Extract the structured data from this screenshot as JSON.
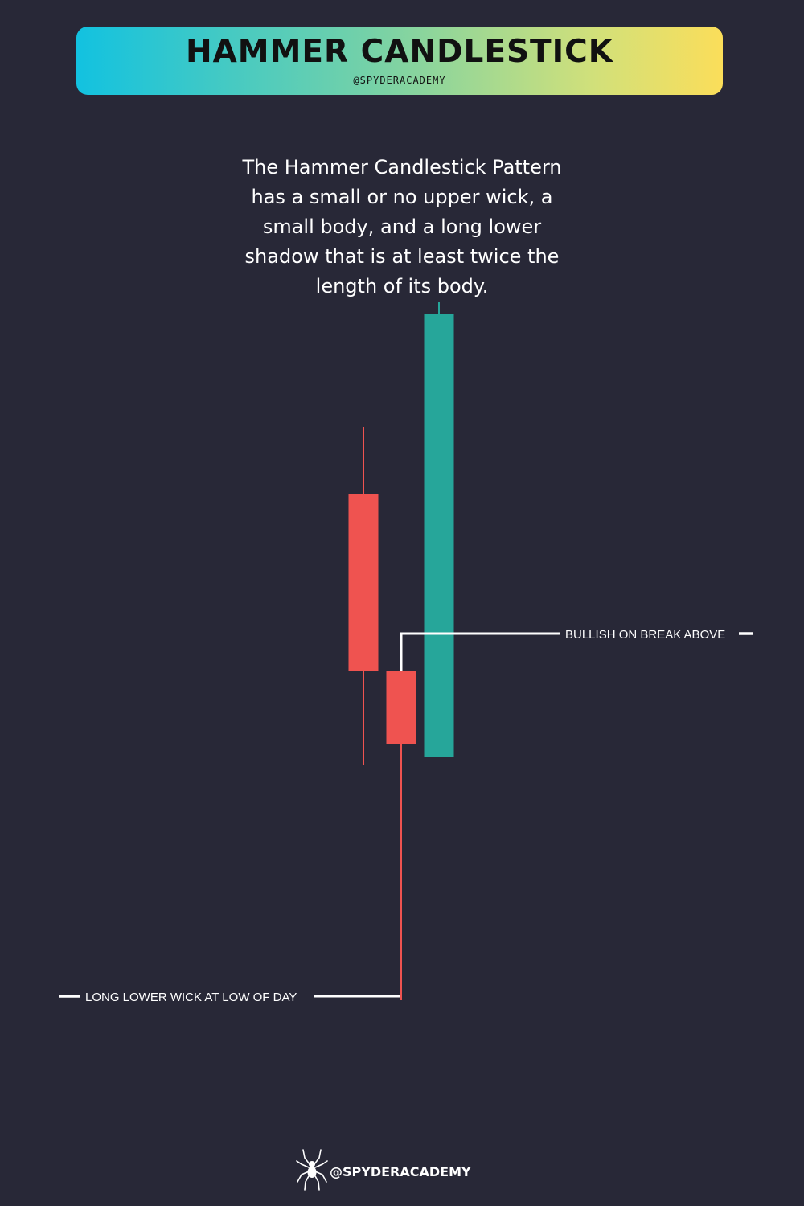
{
  "header": {
    "title": "HAMMER CANDLESTICK",
    "handle": "@SPYDERACADEMY"
  },
  "description": "The Hammer Candlestick Pattern has a small or no upper wick, a small body, and a long lower shadow that is at least twice the length of its body.",
  "chart_data": {
    "type": "candlestick",
    "candles": [
      {
        "open": 88.6,
        "high": 96.9,
        "low": 54.8,
        "close": 66.5,
        "direction": "bearish",
        "color": "#ef5350"
      },
      {
        "open": 66.5,
        "high": 66.5,
        "low": 25.6,
        "close": 57.5,
        "direction": "bearish",
        "color": "#ef5350"
      },
      {
        "open": 55.9,
        "high": 112.4,
        "low": 55.9,
        "close": 110.9,
        "direction": "bullish",
        "color": "#26a69a"
      }
    ],
    "ylim": [
      0,
      150
    ],
    "annotations": [
      {
        "text": "BULLISH ON BREAK ABOVE",
        "price": 71.2
      },
      {
        "text": "LONG LOWER WICK AT LOW OF DAY",
        "price": 25.6
      }
    ]
  },
  "footer": {
    "handle": "@SPYDERACADEMY",
    "icon": "spider-icon"
  },
  "colors": {
    "background": "#282837",
    "bearish": "#ef5350",
    "bullish": "#26a69a",
    "banner_start": "#12c2e0",
    "banner_end": "#fbde5a"
  }
}
